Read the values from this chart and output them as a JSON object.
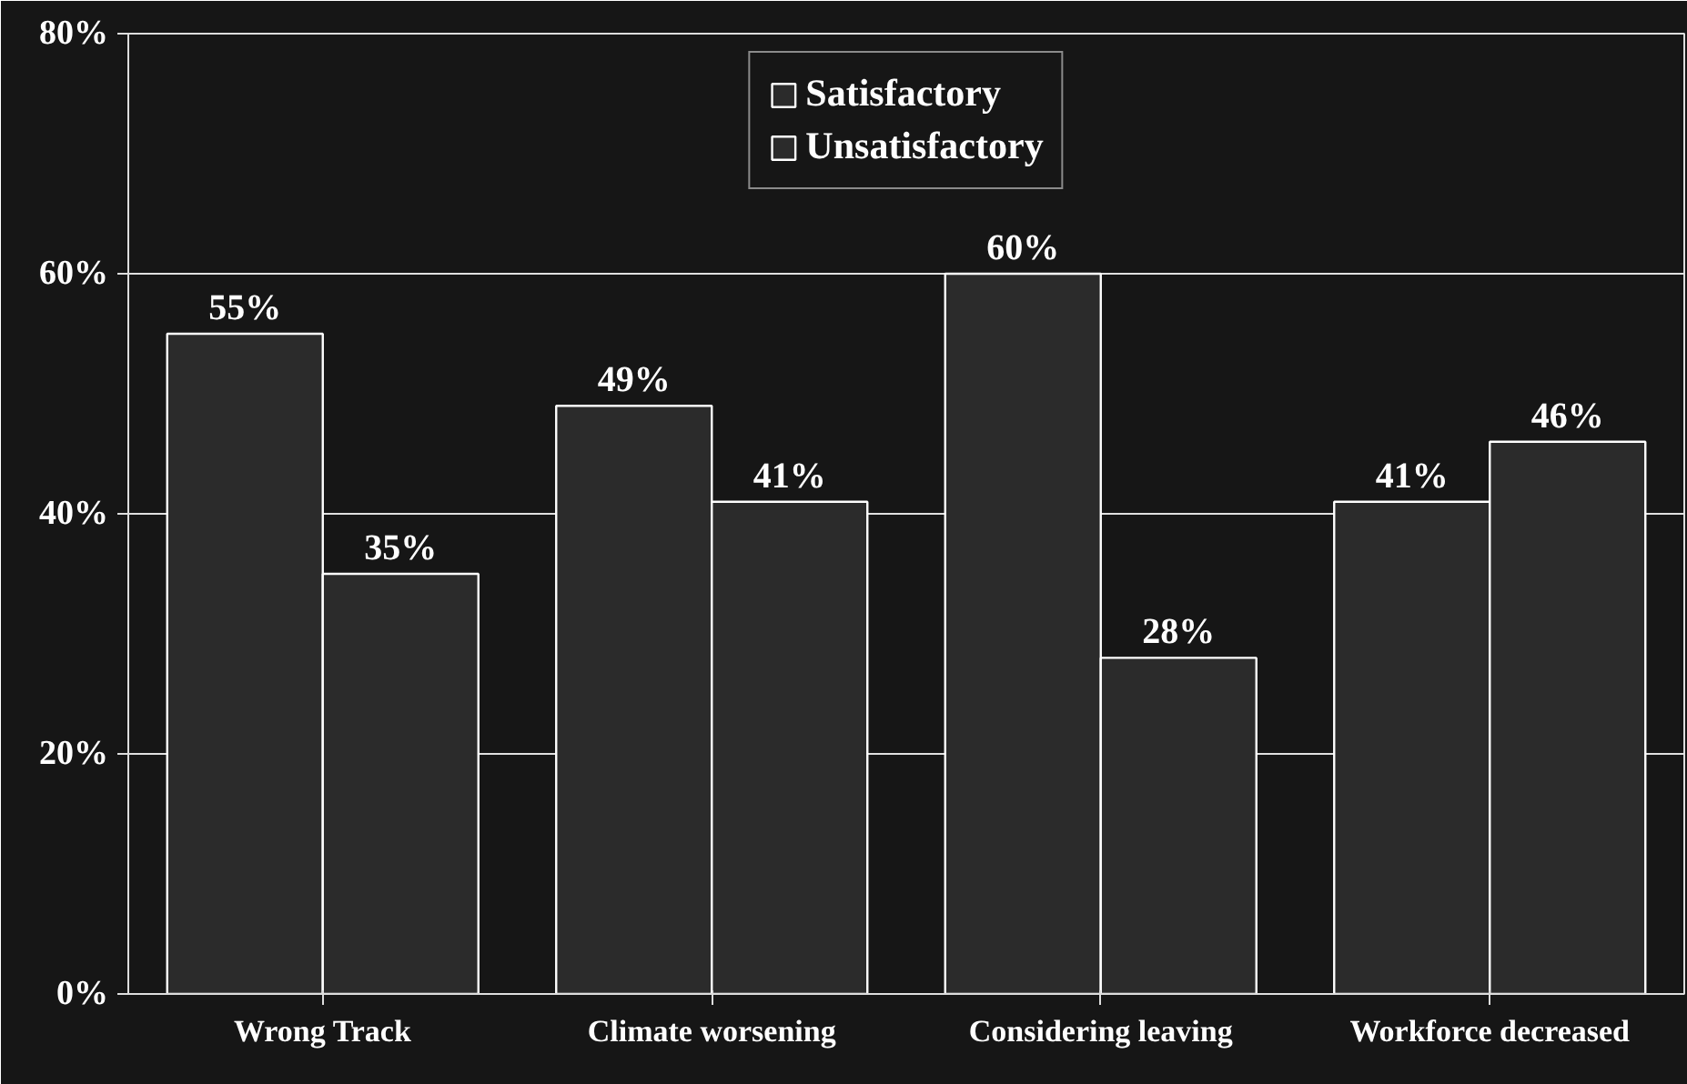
{
  "chart_data": {
    "type": "bar",
    "categories": [
      "Wrong Track",
      "Climate worsening",
      "Considering leaving",
      "Workforce decreased"
    ],
    "series": [
      {
        "name": "Satisfactory",
        "color": "#2b2b2b",
        "values": [
          55,
          49,
          60,
          41
        ],
        "value_labels": [
          "55%",
          "49%",
          "60%",
          "41%"
        ]
      },
      {
        "name": "Unsatisfactory",
        "color": "#2b2b2b",
        "values": [
          35,
          41,
          28,
          46
        ],
        "value_labels": [
          "35%",
          "41%",
          "28%",
          "46%"
        ]
      }
    ],
    "ylim": [
      0,
      80
    ],
    "yticks": [
      {
        "value": 0,
        "label": "0%"
      },
      {
        "value": 20,
        "label": "20%"
      },
      {
        "value": 40,
        "label": "40%"
      },
      {
        "value": 60,
        "label": "60%"
      },
      {
        "value": 80,
        "label": "80%"
      }
    ],
    "grid": "y",
    "legend": "top"
  }
}
